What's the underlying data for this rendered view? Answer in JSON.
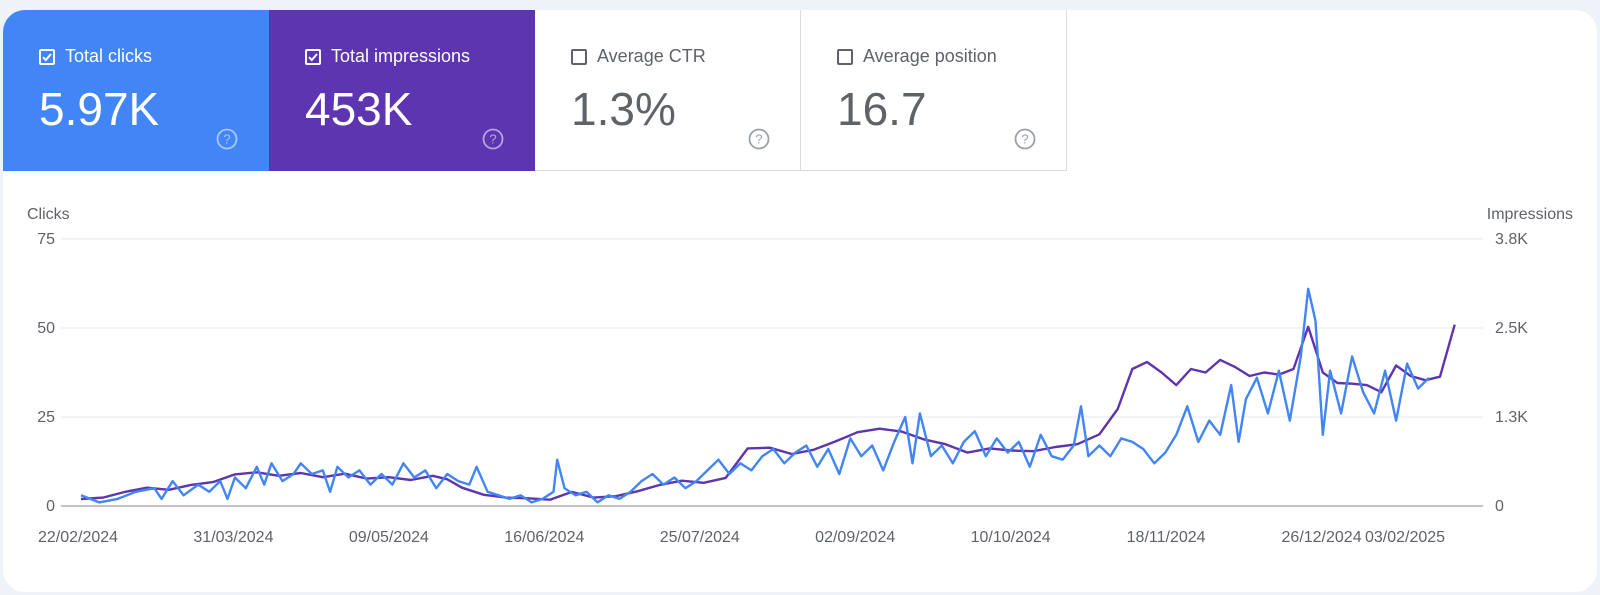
{
  "cards": [
    {
      "key": "clicks",
      "label": "Total clicks",
      "value": "5.97K",
      "checked": true
    },
    {
      "key": "impressions",
      "label": "Total impressions",
      "value": "453K",
      "checked": true
    },
    {
      "key": "ctr",
      "label": "Average CTR",
      "value": "1.3%",
      "checked": false
    },
    {
      "key": "position",
      "label": "Average position",
      "value": "16.7",
      "checked": false
    }
  ],
  "colors": {
    "clicks": "#4285f4",
    "impressions": "#5e35b1",
    "grid": "#e6e8eb",
    "text": "#5f6368"
  },
  "chart_data": {
    "type": "line",
    "title": "",
    "ylabel_left": "Clicks",
    "ylabel_right": "Impressions",
    "ylim_left": [
      0,
      75
    ],
    "ylim_right": [
      0,
      3800
    ],
    "left_ticks": [
      "0",
      "25",
      "50",
      "75"
    ],
    "right_ticks": [
      "0",
      "1.3K",
      "2.5K",
      "3.8K"
    ],
    "x_ticks": [
      "22/02/2024",
      "31/03/2024",
      "09/05/2024",
      "16/06/2024",
      "25/07/2024",
      "02/09/2024",
      "10/10/2024",
      "18/11/2024",
      "26/12/2024",
      "03/02/2025"
    ],
    "x_range": [
      0,
      380
    ],
    "series": [
      {
        "name": "Clicks",
        "axis": "left",
        "points": [
          [
            0,
            3
          ],
          [
            5,
            1
          ],
          [
            10,
            2
          ],
          [
            15,
            4
          ],
          [
            20,
            5
          ],
          [
            22,
            2
          ],
          [
            25,
            7
          ],
          [
            28,
            3
          ],
          [
            32,
            6
          ],
          [
            35,
            4
          ],
          [
            38,
            7
          ],
          [
            40,
            2
          ],
          [
            42,
            8
          ],
          [
            45,
            5
          ],
          [
            48,
            11
          ],
          [
            50,
            6
          ],
          [
            52,
            12
          ],
          [
            55,
            7
          ],
          [
            58,
            9
          ],
          [
            60,
            12
          ],
          [
            63,
            9
          ],
          [
            66,
            10
          ],
          [
            68,
            4
          ],
          [
            70,
            11
          ],
          [
            73,
            8
          ],
          [
            76,
            10
          ],
          [
            79,
            6
          ],
          [
            82,
            9
          ],
          [
            85,
            6
          ],
          [
            88,
            12
          ],
          [
            91,
            8
          ],
          [
            94,
            10
          ],
          [
            97,
            5
          ],
          [
            100,
            9
          ],
          [
            103,
            7
          ],
          [
            106,
            6
          ],
          [
            108,
            11
          ],
          [
            111,
            4
          ],
          [
            114,
            3
          ],
          [
            117,
            2
          ],
          [
            120,
            3
          ],
          [
            123,
            1
          ],
          [
            126,
            2
          ],
          [
            129,
            4
          ],
          [
            130,
            13
          ],
          [
            132,
            5
          ],
          [
            135,
            3
          ],
          [
            138,
            4
          ],
          [
            141,
            1
          ],
          [
            144,
            3
          ],
          [
            147,
            2
          ],
          [
            150,
            4
          ],
          [
            153,
            7
          ],
          [
            156,
            9
          ],
          [
            159,
            6
          ],
          [
            162,
            8
          ],
          [
            165,
            5
          ],
          [
            168,
            7
          ],
          [
            171,
            10
          ],
          [
            174,
            13
          ],
          [
            177,
            9
          ],
          [
            180,
            12
          ],
          [
            183,
            10
          ],
          [
            186,
            14
          ],
          [
            189,
            16
          ],
          [
            192,
            12
          ],
          [
            195,
            15
          ],
          [
            198,
            17
          ],
          [
            201,
            11
          ],
          [
            204,
            16
          ],
          [
            207,
            9
          ],
          [
            210,
            19
          ],
          [
            213,
            14
          ],
          [
            216,
            17
          ],
          [
            219,
            10
          ],
          [
            222,
            18
          ],
          [
            225,
            25
          ],
          [
            227,
            12
          ],
          [
            229,
            26
          ],
          [
            232,
            14
          ],
          [
            235,
            17
          ],
          [
            238,
            12
          ],
          [
            241,
            18
          ],
          [
            244,
            21
          ],
          [
            247,
            14
          ],
          [
            250,
            19
          ],
          [
            253,
            15
          ],
          [
            256,
            18
          ],
          [
            259,
            11
          ],
          [
            262,
            20
          ],
          [
            265,
            14
          ],
          [
            268,
            13
          ],
          [
            271,
            17
          ],
          [
            273,
            28
          ],
          [
            275,
            14
          ],
          [
            278,
            17
          ],
          [
            281,
            14
          ],
          [
            284,
            19
          ],
          [
            287,
            18
          ],
          [
            290,
            16
          ],
          [
            293,
            12
          ],
          [
            296,
            15
          ],
          [
            299,
            20
          ],
          [
            302,
            28
          ],
          [
            305,
            18
          ],
          [
            308,
            24
          ],
          [
            311,
            20
          ],
          [
            314,
            34
          ],
          [
            316,
            18
          ],
          [
            318,
            30
          ],
          [
            321,
            36
          ],
          [
            324,
            26
          ],
          [
            327,
            38
          ],
          [
            330,
            24
          ],
          [
            333,
            42
          ],
          [
            335,
            61
          ],
          [
            337,
            52
          ],
          [
            339,
            20
          ],
          [
            341,
            38
          ],
          [
            344,
            26
          ],
          [
            347,
            42
          ],
          [
            350,
            32
          ],
          [
            353,
            26
          ],
          [
            356,
            38
          ],
          [
            359,
            24
          ],
          [
            362,
            40
          ],
          [
            365,
            33
          ],
          [
            368,
            36
          ]
        ]
      },
      {
        "name": "Impressions",
        "axis": "right",
        "points": [
          [
            0,
            100
          ],
          [
            6,
            120
          ],
          [
            12,
            200
          ],
          [
            18,
            260
          ],
          [
            24,
            230
          ],
          [
            30,
            300
          ],
          [
            36,
            340
          ],
          [
            42,
            450
          ],
          [
            48,
            480
          ],
          [
            54,
            430
          ],
          [
            60,
            470
          ],
          [
            66,
            410
          ],
          [
            72,
            460
          ],
          [
            78,
            390
          ],
          [
            84,
            410
          ],
          [
            90,
            370
          ],
          [
            96,
            430
          ],
          [
            100,
            380
          ],
          [
            104,
            260
          ],
          [
            110,
            160
          ],
          [
            116,
            120
          ],
          [
            122,
            110
          ],
          [
            128,
            90
          ],
          [
            134,
            200
          ],
          [
            140,
            120
          ],
          [
            146,
            140
          ],
          [
            152,
            210
          ],
          [
            158,
            300
          ],
          [
            164,
            360
          ],
          [
            170,
            330
          ],
          [
            176,
            400
          ],
          [
            182,
            820
          ],
          [
            188,
            830
          ],
          [
            194,
            740
          ],
          [
            200,
            800
          ],
          [
            206,
            920
          ],
          [
            212,
            1050
          ],
          [
            218,
            1100
          ],
          [
            224,
            1060
          ],
          [
            230,
            950
          ],
          [
            236,
            880
          ],
          [
            242,
            760
          ],
          [
            248,
            820
          ],
          [
            254,
            790
          ],
          [
            260,
            780
          ],
          [
            266,
            840
          ],
          [
            272,
            880
          ],
          [
            278,
            1020
          ],
          [
            283,
            1380
          ],
          [
            287,
            1950
          ],
          [
            291,
            2050
          ],
          [
            295,
            1900
          ],
          [
            299,
            1720
          ],
          [
            303,
            1950
          ],
          [
            307,
            1900
          ],
          [
            311,
            2080
          ],
          [
            315,
            1980
          ],
          [
            319,
            1850
          ],
          [
            323,
            1900
          ],
          [
            327,
            1870
          ],
          [
            331,
            1950
          ],
          [
            335,
            2550
          ],
          [
            339,
            1900
          ],
          [
            343,
            1750
          ],
          [
            347,
            1740
          ],
          [
            351,
            1720
          ],
          [
            355,
            1620
          ],
          [
            359,
            2000
          ],
          [
            363,
            1850
          ],
          [
            367,
            1790
          ],
          [
            371,
            1840
          ],
          [
            375,
            2580
          ]
        ]
      }
    ]
  }
}
